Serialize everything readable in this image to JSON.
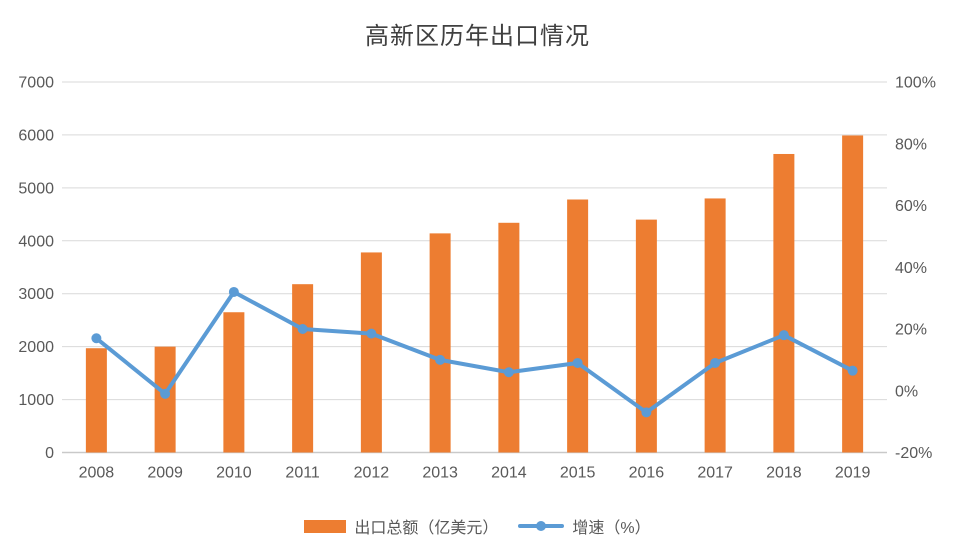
{
  "chart_data": {
    "type": "combo-bar-line",
    "title": "高新区历年出口情况",
    "categories": [
      "2008",
      "2009",
      "2010",
      "2011",
      "2012",
      "2013",
      "2014",
      "2015",
      "2016",
      "2017",
      "2018",
      "2019"
    ],
    "series": [
      {
        "name": "出口总额（亿美元）",
        "type": "bar",
        "axis": "left",
        "color": "#ED7D31",
        "values": [
          1970,
          2000,
          2650,
          3180,
          3780,
          4140,
          4340,
          4780,
          4400,
          4800,
          5640,
          5990
        ]
      },
      {
        "name": "增速（%）",
        "type": "line",
        "axis": "right",
        "color": "#5B9BD5",
        "values": [
          17,
          -1,
          32,
          20,
          18.5,
          10,
          6,
          9,
          -7,
          9,
          18,
          6.5
        ]
      }
    ],
    "left_axis": {
      "min": 0,
      "max": 7000,
      "step": 1000,
      "tick_labels": [
        "0",
        "1000",
        "2000",
        "3000",
        "4000",
        "5000",
        "6000",
        "7000"
      ]
    },
    "right_axis": {
      "min": -20,
      "max": 100,
      "step": 20,
      "tick_labels": [
        "-20%",
        "0%",
        "20%",
        "40%",
        "60%",
        "80%",
        "100%"
      ]
    },
    "grid": true,
    "legend_position": "bottom",
    "colors": {
      "background": "#FFFFFF",
      "gridline": "#D9D9D9",
      "baseline": "#C9C9C9",
      "axis_labels": "#595959",
      "title": "#404040"
    }
  }
}
